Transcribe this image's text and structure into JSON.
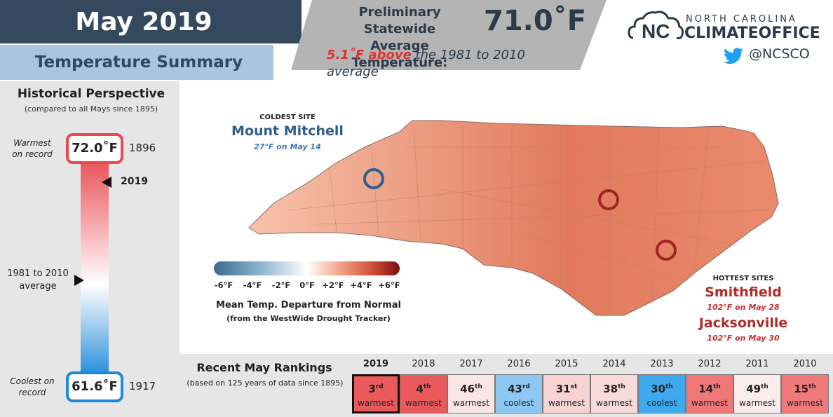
{
  "header": {
    "title": "May 2019",
    "subtitle": "Temperature Summary",
    "prelim_label_line1": "Preliminary Statewide",
    "prelim_label_line2": "Average Temperature:",
    "prelim_value": "71.0˚F",
    "anomaly_highlight": "5.1˚F above",
    "anomaly_rest": " the 1981 to 2010 average"
  },
  "logo": {
    "top": "NORTH CAROLINA",
    "bottom": "CLIMATEOFFICE",
    "twitter_handle": "@NCSCO"
  },
  "historical": {
    "title": "Historical Perspective",
    "subtitle": "(compared to all Mays since 1895)",
    "warmest_label_line1": "Warmest",
    "warmest_label_line2": "on record",
    "warmest_value": "72.0˚F",
    "warmest_year": "1896",
    "current_year": "2019",
    "avg_label_line1": "1981 to 2010",
    "avg_label_line2": "average",
    "coolest_label_line1": "Coolest on",
    "coolest_label_line2": "record",
    "coolest_value": "61.6˚F",
    "coolest_year": "1917",
    "colors": {
      "warm": "#e64a52",
      "cool": "#1c8ad8"
    }
  },
  "map": {
    "coldest_header": "COLDEST SITE",
    "coldest_name": "Mount Mitchell",
    "coldest_detail": "27°F on May 14",
    "hottest_header": "HOTTEST SITES",
    "hot1_name": "Smithfield",
    "hot1_detail": "102°F on May 28",
    "hot2_name": "Jacksonville",
    "hot2_detail": "102°F on May 30"
  },
  "legend": {
    "ticks": [
      "-6°F",
      "-4°F",
      "-2°F",
      "0°F",
      "+2°F",
      "+4°F",
      "+6°F"
    ],
    "title": "Mean Temp. Departure from Normal",
    "subtitle": "(from the WestWide Drought Tracker)"
  },
  "rankings": {
    "title": "Recent May Rankings",
    "subtitle": "(based on 125 years of data since 1895)",
    "items": [
      {
        "year": "2019",
        "rank": "3",
        "suffix": "rd",
        "label": "warmest",
        "color": "#ea5a5a"
      },
      {
        "year": "2018",
        "rank": "4",
        "suffix": "th",
        "label": "warmest",
        "color": "#ea5a5a"
      },
      {
        "year": "2017",
        "rank": "46",
        "suffix": "th",
        "label": "warmest",
        "color": "#fbe6e6"
      },
      {
        "year": "2016",
        "rank": "43",
        "suffix": "rd",
        "label": "coolest",
        "color": "#8ec8f2"
      },
      {
        "year": "2015",
        "rank": "31",
        "suffix": "st",
        "label": "warmest",
        "color": "#f9d2d2"
      },
      {
        "year": "2014",
        "rank": "38",
        "suffix": "th",
        "label": "warmest",
        "color": "#f9dada"
      },
      {
        "year": "2013",
        "rank": "30",
        "suffix": "th",
        "label": "coolest",
        "color": "#3ea9ec"
      },
      {
        "year": "2012",
        "rank": "14",
        "suffix": "th",
        "label": "warmest",
        "color": "#f07878"
      },
      {
        "year": "2011",
        "rank": "49",
        "suffix": "th",
        "label": "warmest",
        "color": "#fcecec"
      },
      {
        "year": "2010",
        "rank": "15",
        "suffix": "th",
        "label": "warmest",
        "color": "#f07a7a"
      }
    ]
  }
}
